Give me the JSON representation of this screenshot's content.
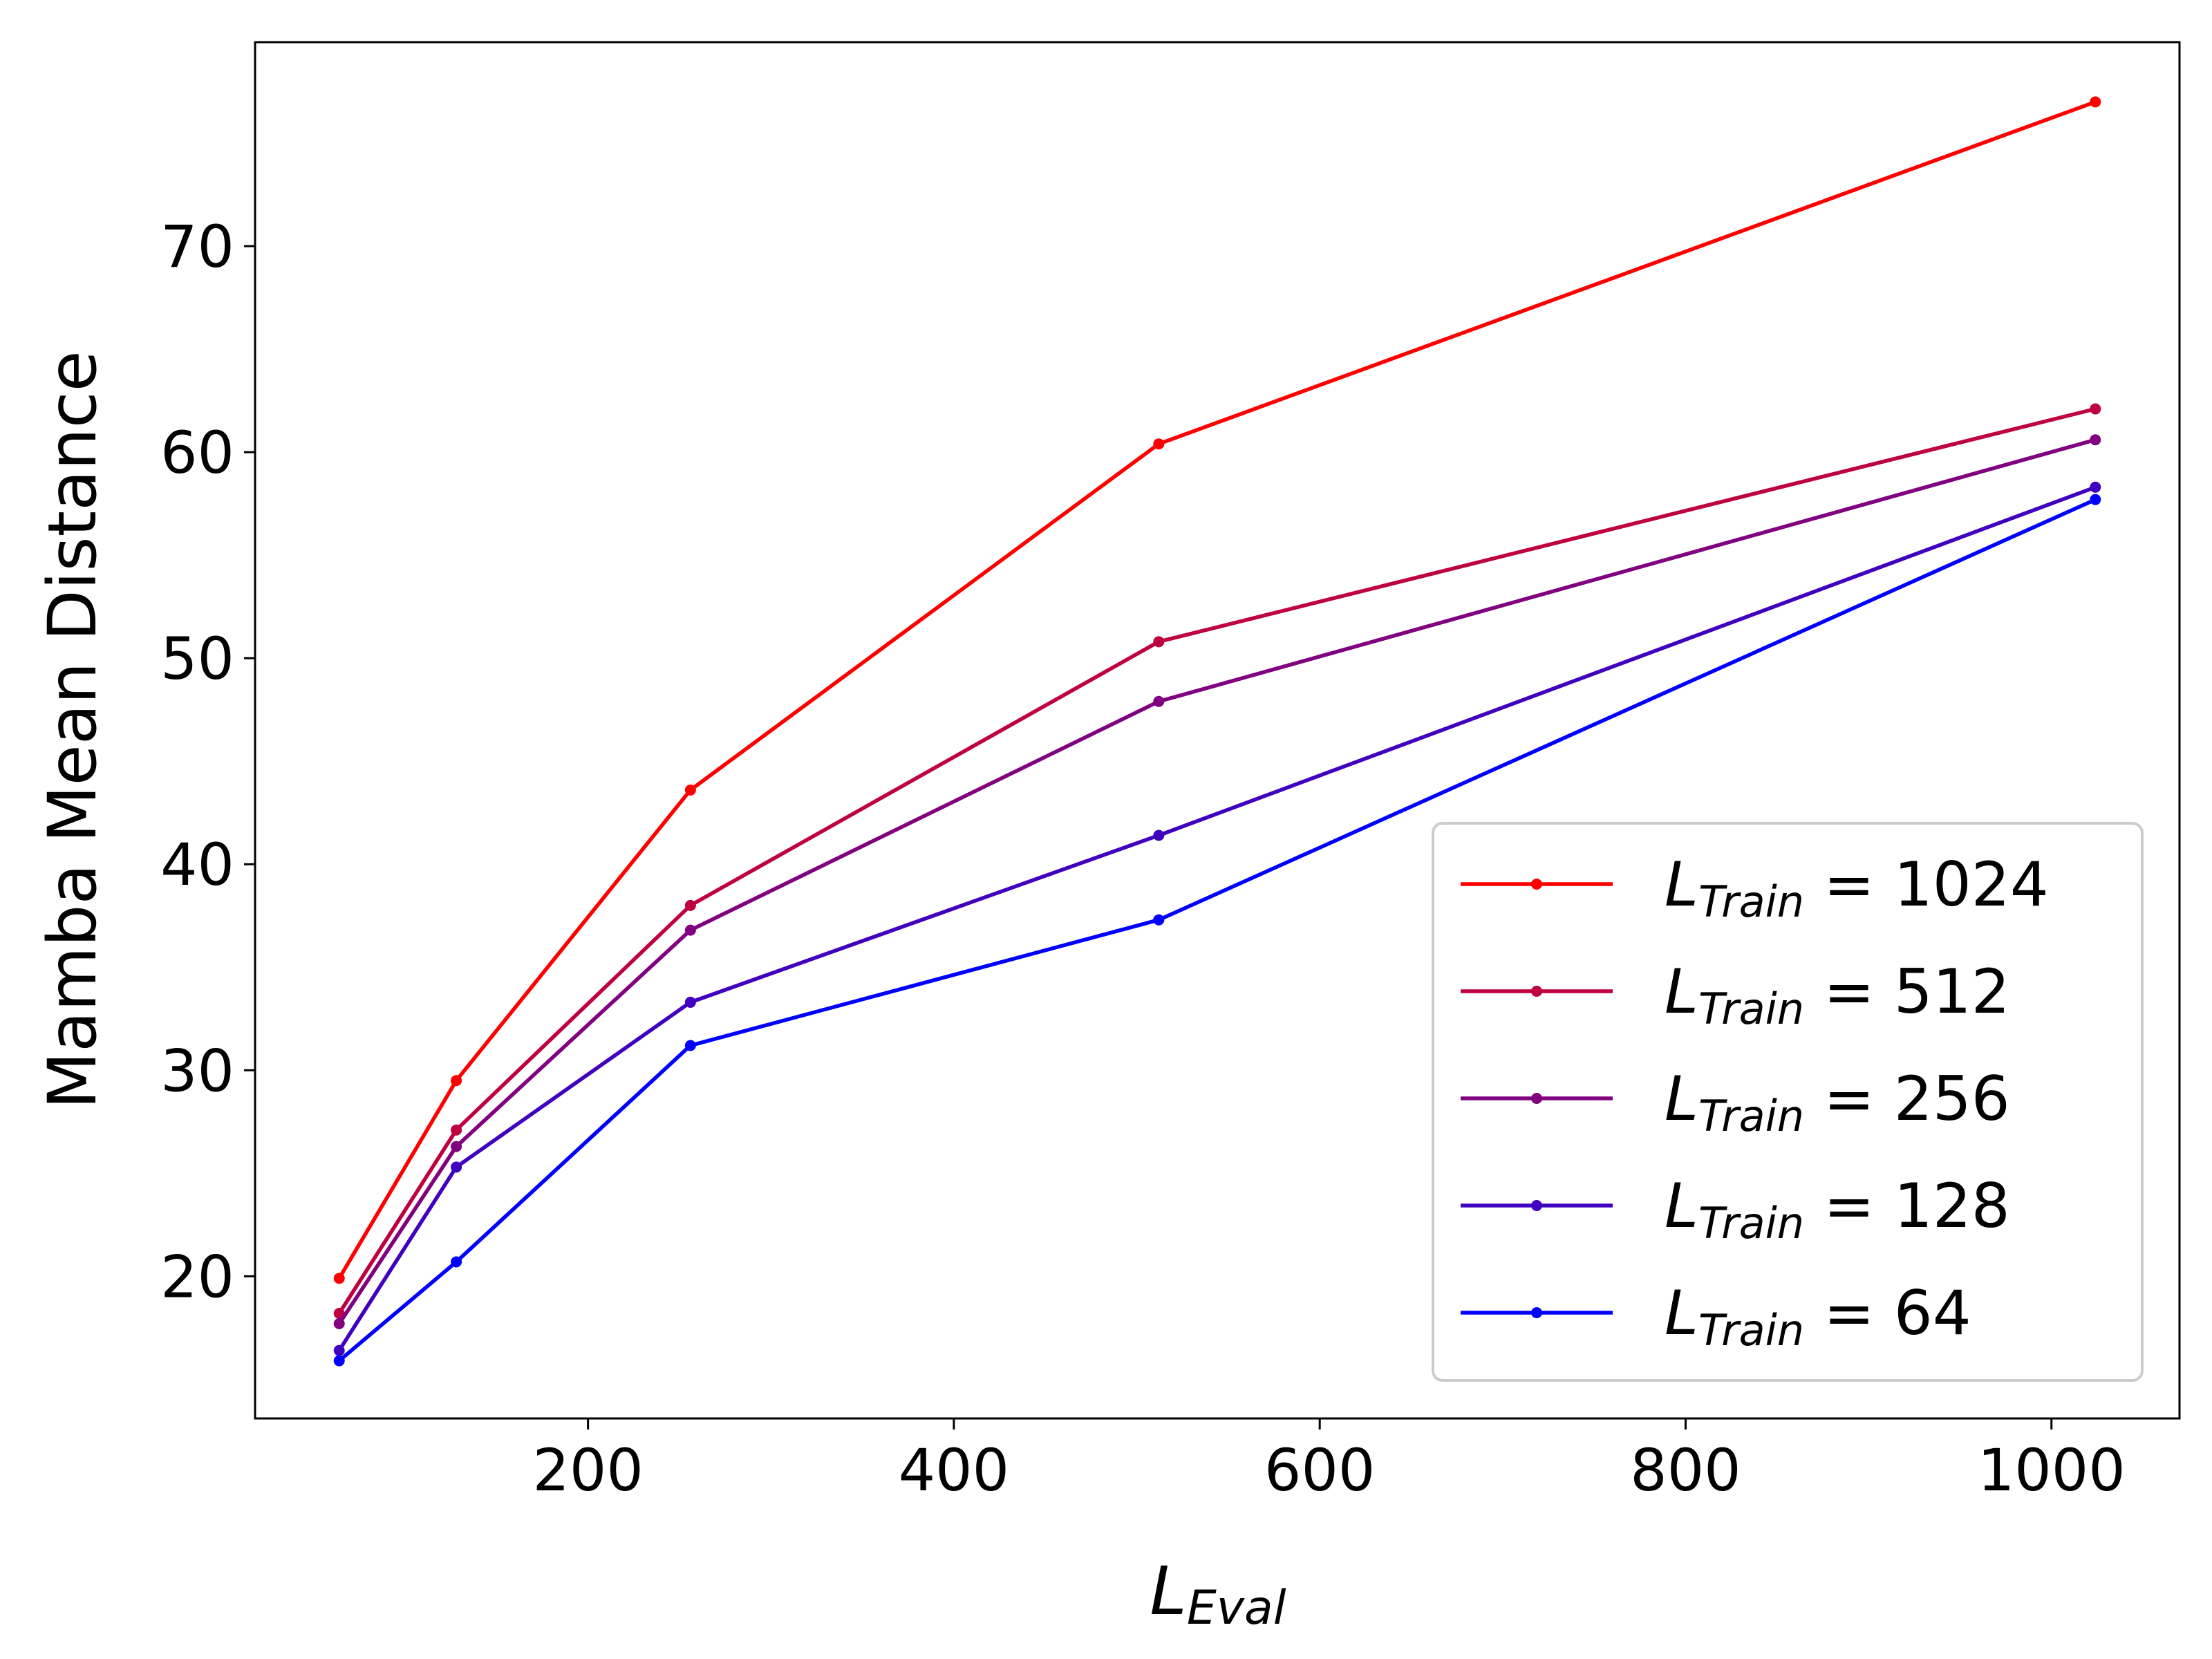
{
  "chart_data": {
    "type": "line",
    "title": "",
    "xlabel": {
      "main": "L",
      "sub": "Eval"
    },
    "ylabel": "Mamba Mean Distance",
    "x": [
      64,
      128,
      256,
      512,
      1024
    ],
    "xlim": [
      18,
      1070
    ],
    "ylim": [
      13.1,
      79.9
    ],
    "xticks": [
      200,
      400,
      600,
      800,
      1000
    ],
    "yticks": [
      20,
      30,
      40,
      50,
      60,
      70
    ],
    "grid": false,
    "legend_position": "bottom-right",
    "series": [
      {
        "name": "L_Train = 1024",
        "sub": "Train",
        "value_label": "1024",
        "color": "#ff0000",
        "values": [
          19.9,
          29.5,
          43.6,
          60.4,
          77.0
        ]
      },
      {
        "name": "L_Train = 512",
        "sub": "Train",
        "value_label": "512",
        "color": "#bf0040",
        "values": [
          18.2,
          27.1,
          38.0,
          50.8,
          62.1
        ]
      },
      {
        "name": "L_Train = 256",
        "sub": "Train",
        "value_label": "256",
        "color": "#800080",
        "values": [
          17.7,
          26.3,
          36.8,
          47.9,
          60.6
        ]
      },
      {
        "name": "L_Train = 128",
        "sub": "Train",
        "value_label": "128",
        "color": "#4000bf",
        "values": [
          16.4,
          25.3,
          33.3,
          41.4,
          58.3
        ]
      },
      {
        "name": "L_Train = 64",
        "sub": "Train",
        "value_label": "64",
        "color": "#0000ff",
        "values": [
          15.9,
          20.7,
          31.2,
          37.3,
          57.7
        ]
      }
    ]
  }
}
